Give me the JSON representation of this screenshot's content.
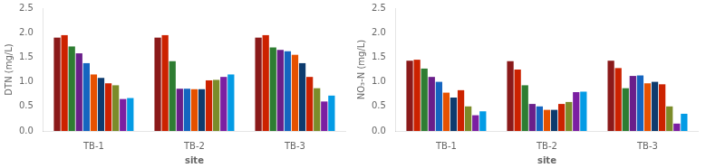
{
  "chart_data": [
    {
      "type": "bar",
      "categories": [
        "TB-1",
        "TB-2",
        "TB-3"
      ],
      "series": [
        {
          "color": "#8B1A1A",
          "values": [
            1.9,
            1.9,
            1.9
          ]
        },
        {
          "color": "#CC2200",
          "values": [
            1.95,
            1.95,
            1.95
          ]
        },
        {
          "color": "#2E7D32",
          "values": [
            1.72,
            1.42,
            1.7
          ]
        },
        {
          "color": "#6A1F8A",
          "values": [
            1.58,
            0.86,
            1.65
          ]
        },
        {
          "color": "#1565C0",
          "values": [
            1.38,
            0.86,
            1.62
          ]
        },
        {
          "color": "#E65100",
          "values": [
            1.15,
            0.85,
            1.55
          ]
        },
        {
          "color": "#0D3B6E",
          "values": [
            1.08,
            0.85,
            1.38
          ]
        },
        {
          "color": "#CC2200",
          "values": [
            0.97,
            1.03,
            1.1
          ]
        },
        {
          "color": "#7B8C2A",
          "values": [
            0.93,
            1.04,
            0.87
          ]
        },
        {
          "color": "#7B1FA2",
          "values": [
            0.65,
            1.1,
            0.6
          ]
        },
        {
          "color": "#039BE5",
          "values": [
            0.67,
            1.15,
            0.72
          ]
        }
      ],
      "xlabel": "site",
      "ylabel": "DTN (mg/L)",
      "ylim": [
        0,
        2.5
      ],
      "yticks": [
        {
          "value": 0,
          "label": "0.0"
        },
        0.5,
        {
          "value": 1,
          "label": "1.0"
        },
        1.5,
        {
          "value": 2,
          "label": "2.0"
        },
        2.5
      ],
      "grid": false
    },
    {
      "type": "bar",
      "categories": [
        "TB-1",
        "TB-2",
        "TB-3"
      ],
      "series": [
        {
          "color": "#8B1A1A",
          "values": [
            1.43,
            1.42,
            1.43
          ]
        },
        {
          "color": "#CC2200",
          "values": [
            1.45,
            1.25,
            1.28
          ]
        },
        {
          "color": "#2E7D32",
          "values": [
            1.27,
            0.93,
            0.87
          ]
        },
        {
          "color": "#6A1F8A",
          "values": [
            1.1,
            0.55,
            1.12
          ]
        },
        {
          "color": "#1565C0",
          "values": [
            1.0,
            0.5,
            1.13
          ]
        },
        {
          "color": "#E65100",
          "values": [
            0.78,
            0.43,
            0.97
          ]
        },
        {
          "color": "#0D3B6E",
          "values": [
            0.68,
            0.43,
            1.0
          ]
        },
        {
          "color": "#CC2200",
          "values": [
            0.83,
            0.55,
            0.95
          ]
        },
        {
          "color": "#7B8C2A",
          "values": [
            0.5,
            0.59,
            0.5
          ]
        },
        {
          "color": "#7B1FA2",
          "values": [
            0.32,
            0.79,
            0.15
          ]
        },
        {
          "color": "#039BE5",
          "values": [
            0.4,
            0.8,
            0.35
          ]
        }
      ],
      "xlabel": "site",
      "ylabel": "NO₃-N (mg/L)",
      "ylim": [
        0,
        2.5
      ],
      "yticks": [
        {
          "value": 0,
          "label": "0.0"
        },
        0.5,
        {
          "value": 1,
          "label": "1.0"
        },
        1.5,
        {
          "value": 2,
          "label": "2.0"
        },
        2.5
      ],
      "grid": false
    }
  ]
}
